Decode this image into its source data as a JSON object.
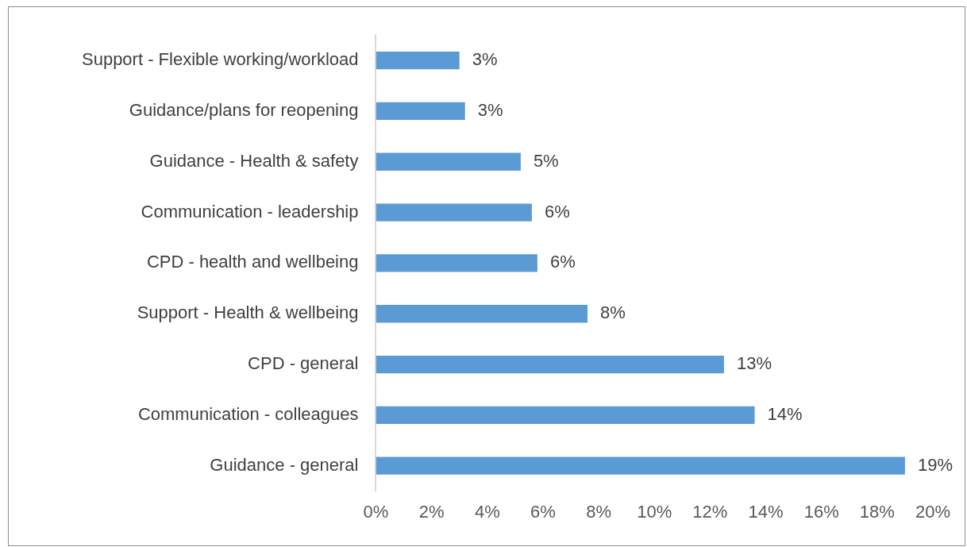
{
  "chart_data": {
    "type": "bar",
    "orientation": "horizontal",
    "categories": [
      "Support - Flexible working/workload",
      "Guidance/plans for reopening",
      "Guidance - Health & safety",
      "Communication - leadership",
      "CPD - health and wellbeing",
      "Support - Health & wellbeing",
      "CPD - general",
      "Communication - colleagues",
      "Guidance - general"
    ],
    "values": [
      3.0,
      3.2,
      5.2,
      5.6,
      5.8,
      7.6,
      12.5,
      13.6,
      19.0
    ],
    "value_labels": [
      "3%",
      "3%",
      "5%",
      "6%",
      "6%",
      "8%",
      "13%",
      "14%",
      "19%"
    ],
    "color": "#5b9bd5",
    "xlim": [
      0,
      20
    ],
    "xticks": [
      {
        "value": 0,
        "label": "0%"
      },
      {
        "value": 2,
        "label": "2%"
      },
      {
        "value": 4,
        "label": "4%"
      },
      {
        "value": 6,
        "label": "6%"
      },
      {
        "value": 8,
        "label": "8%"
      },
      {
        "value": 10,
        "label": "10%"
      },
      {
        "value": 12,
        "label": "12%"
      },
      {
        "value": 14,
        "label": "14%"
      },
      {
        "value": 16,
        "label": "16%"
      },
      {
        "value": 18,
        "label": "18%"
      },
      {
        "value": 20,
        "label": "20%"
      }
    ],
    "grid": false,
    "legend": false
  }
}
